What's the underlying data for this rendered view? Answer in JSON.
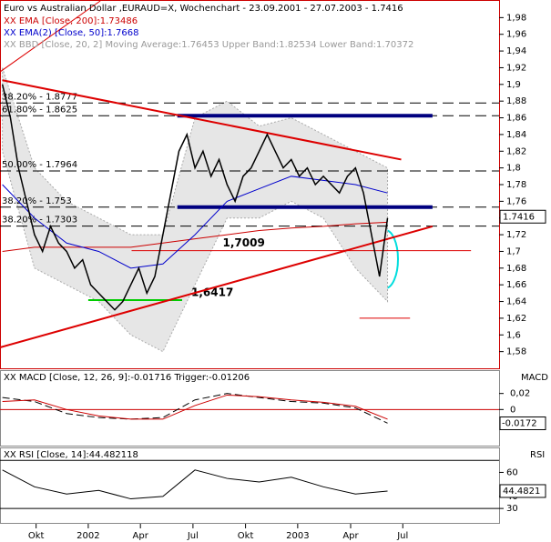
{
  "chart_data": {
    "type": "line",
    "title": "Euro vs Australian Dollar ,EURAUD=X, Wochenchart - 23.09.2001 - 27.07.2003 - 1.7416",
    "legend": [
      "XX EMA [Close, 200]:1.73486",
      "XX EMA(2) [Close, 50]:1.7668",
      "XX BBD [Close, 20, 2] Moving Average:1.76453 Upper Band:1.82534 Lower Band:1.70372"
    ],
    "legend_colors": [
      "#cc0000",
      "#0000cc",
      "#999999"
    ],
    "xlim": [
      -0.3,
      61.9
    ],
    "xticks": [
      {
        "value": 4.2,
        "label": "Okt"
      },
      {
        "value": 10.7,
        "label": "2002"
      },
      {
        "value": 17.2,
        "label": "Apr"
      },
      {
        "value": 23.75,
        "label": "Jul"
      },
      {
        "value": 30.3,
        "label": "Okt"
      },
      {
        "value": 36.8,
        "label": "2003"
      },
      {
        "value": 43.4,
        "label": "Apr"
      },
      {
        "value": 49.9,
        "label": "Jul"
      }
    ],
    "ylim": [
      1.56,
      2.0
    ],
    "yticks": [
      {
        "value": 1.98,
        "label": "1,98"
      },
      {
        "value": 1.96,
        "label": "1,96"
      },
      {
        "value": 1.94,
        "label": "1,94"
      },
      {
        "value": 1.92,
        "label": "1,92"
      },
      {
        "value": 1.9,
        "label": "1,9"
      },
      {
        "value": 1.88,
        "label": "1,88"
      },
      {
        "value": 1.86,
        "label": "1,86"
      },
      {
        "value": 1.84,
        "label": "1,84"
      },
      {
        "value": 1.82,
        "label": "1,82"
      },
      {
        "value": 1.8,
        "label": "1,8"
      },
      {
        "value": 1.78,
        "label": "1,78"
      },
      {
        "value": 1.76,
        "label": "1,76"
      },
      {
        "value": 1.74,
        "label": "1,74"
      },
      {
        "value": 1.72,
        "label": "1,72"
      },
      {
        "value": 1.7,
        "label": "1,7"
      },
      {
        "value": 1.68,
        "label": "1,68"
      },
      {
        "value": 1.66,
        "label": "1,66"
      },
      {
        "value": 1.64,
        "label": "1,64"
      },
      {
        "value": 1.62,
        "label": "1,62"
      },
      {
        "value": 1.6,
        "label": "1,6"
      },
      {
        "value": 1.58,
        "label": "1,58"
      }
    ],
    "last_price": 1.7416,
    "price": {
      "color": "#000000",
      "values": [
        1.9,
        1.86,
        1.8,
        1.76,
        1.72,
        1.7,
        1.73,
        1.71,
        1.7,
        1.68,
        1.69,
        1.66,
        1.65,
        1.64,
        1.63,
        1.64,
        1.66,
        1.68,
        1.65,
        1.67,
        1.72,
        1.77,
        1.82,
        1.84,
        1.8,
        1.82,
        1.79,
        1.81,
        1.78,
        1.76,
        1.79,
        1.8,
        1.82,
        1.84,
        1.82,
        1.8,
        1.81,
        1.79,
        1.8,
        1.78,
        1.79,
        1.78,
        1.77,
        1.79,
        1.8,
        1.77,
        1.72,
        1.67,
        1.74
      ]
    },
    "ma_x": [
      0,
      4,
      8,
      12,
      16,
      20,
      24,
      28,
      32,
      36,
      40,
      44,
      48
    ],
    "series": [
      {
        "name": "XX EMA [Close, 200]:1.73486",
        "color": "#cc0000",
        "values": [
          1.7,
          1.705,
          1.705,
          1.705,
          1.705,
          1.71,
          1.715,
          1.72,
          1.725,
          1.728,
          1.73,
          1.733,
          1.735
        ]
      },
      {
        "name": "XX EMA(2) [Close, 50]:1.7668",
        "color": "#0000cc",
        "values": [
          1.78,
          1.74,
          1.71,
          1.7,
          1.68,
          1.685,
          1.72,
          1.76,
          1.775,
          1.79,
          1.785,
          1.78,
          1.77
        ]
      }
    ],
    "band_upper": [
      1.92,
      1.8,
      1.76,
      1.74,
      1.72,
      1.72,
      1.86,
      1.88,
      1.85,
      1.86,
      1.84,
      1.82,
      1.8
    ],
    "band_lower": [
      1.82,
      1.68,
      1.66,
      1.64,
      1.6,
      1.58,
      1.66,
      1.74,
      1.74,
      1.76,
      1.74,
      1.68,
      1.64
    ],
    "levels": [
      {
        "value": 1.8777,
        "label": "38.20% - 1.8777"
      },
      {
        "value": 1.8625,
        "label": "61.80% - 1.8625"
      },
      {
        "value": 1.7964,
        "label": "50.00% - 1.7964"
      },
      {
        "value": 1.753,
        "label": "38.20% - 1.753"
      },
      {
        "value": 1.7303,
        "label": "38.20% - 1.7303"
      }
    ],
    "channel": [
      {
        "from": 21.8,
        "to": 53.6,
        "value": 1.8625
      },
      {
        "from": 21.8,
        "to": 53.6,
        "value": 1.753
      }
    ],
    "trendlines": [
      {
        "x": [
          0,
          49.7
        ],
        "y": [
          1.905,
          1.81
        ],
        "color": "#dd0000"
      },
      {
        "x": [
          -0.3,
          53.6
        ],
        "y": [
          1.585,
          1.73
        ],
        "color": "#dd0000"
      },
      {
        "x": [
          -0.3,
          12.2
        ],
        "y": [
          1.915,
          2.0
        ],
        "color": "#dd0000"
      }
    ],
    "support": [
      {
        "from": 16.1,
        "to": 58.4,
        "value": 1.7009,
        "label": "1,7009",
        "color": "#dd0000"
      },
      {
        "from": 10.7,
        "to": 22.4,
        "value": 1.6417,
        "label": "1,6417",
        "color": "#00cc00"
      },
      {
        "from": 44.5,
        "to": 50.8,
        "value": 1.62,
        "color": "#dd0000"
      }
    ],
    "macd": {
      "title": "XX MACD [Close, 12, 26, 9]:-0.01716 Trigger:-0.01206",
      "axis_label": "MACD",
      "ylim": [
        -0.045,
        0.048
      ],
      "yticks": [
        {
          "value": 0.02,
          "label": "0,02"
        },
        0
      ],
      "last": -0.0172,
      "series": [
        {
          "name": "MACD",
          "color": "#000000",
          "values": [
            0.015,
            0.01,
            -0.005,
            -0.01,
            -0.012,
            -0.01,
            0.012,
            0.02,
            0.015,
            0.01,
            0.008,
            0.002,
            -0.017
          ]
        },
        {
          "name": "Trigger",
          "color": "#cc0000",
          "values": [
            0.01,
            0.012,
            0.0,
            -0.008,
            -0.012,
            -0.012,
            0.005,
            0.018,
            0.016,
            0.012,
            0.009,
            0.004,
            -0.012
          ]
        }
      ]
    },
    "rsi": {
      "title": "XX RSI [Close, 14]:44.482118",
      "axis_label": "RSI",
      "ylim": [
        18,
        80
      ],
      "yticks": [
        60,
        40,
        30
      ],
      "lines": [
        70,
        30
      ],
      "last": 44.4821,
      "values": [
        62,
        48,
        42,
        45,
        38,
        40,
        62,
        55,
        52,
        56,
        48,
        42,
        44.48
      ]
    }
  }
}
